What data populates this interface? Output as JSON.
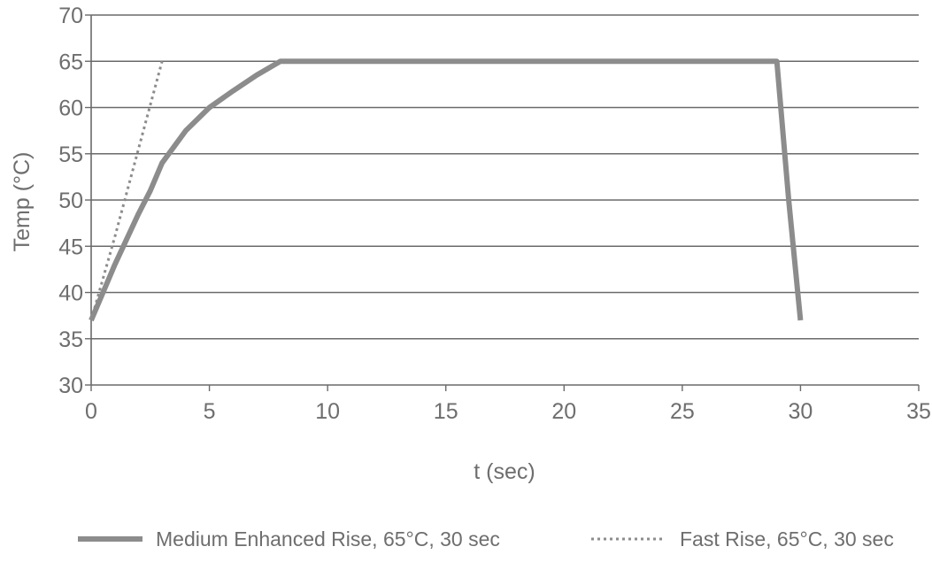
{
  "chart_data": {
    "type": "line",
    "title": "",
    "xlabel": "t (sec)",
    "ylabel": "Temp (°C)",
    "xlim": [
      0,
      35
    ],
    "ylim": [
      30,
      70
    ],
    "x_ticks": [
      0,
      5,
      10,
      15,
      20,
      25,
      30,
      35
    ],
    "y_ticks": [
      30,
      35,
      40,
      45,
      50,
      55,
      60,
      65,
      70
    ],
    "grid": "horizontal",
    "legend_position": "bottom",
    "series": [
      {
        "name": "Medium Enhanced Rise, 65°C, 30 sec",
        "style": "solid-thick",
        "color": "#8c8c8c",
        "points": [
          [
            0,
            37
          ],
          [
            0.5,
            40
          ],
          [
            1,
            43
          ],
          [
            2,
            48.5
          ],
          [
            2.5,
            51
          ],
          [
            3,
            54
          ],
          [
            4,
            57.5
          ],
          [
            5,
            60
          ],
          [
            6,
            61.8
          ],
          [
            7,
            63.5
          ],
          [
            8,
            65
          ],
          [
            29,
            65
          ],
          [
            29.5,
            50
          ],
          [
            30,
            37
          ]
        ]
      },
      {
        "name": "Fast Rise, 65°C, 30 sec",
        "style": "dotted",
        "color": "#8c8c8c",
        "points": [
          [
            0,
            37
          ],
          [
            1,
            46
          ],
          [
            2,
            55.5
          ],
          [
            3,
            65
          ]
        ]
      }
    ]
  }
}
